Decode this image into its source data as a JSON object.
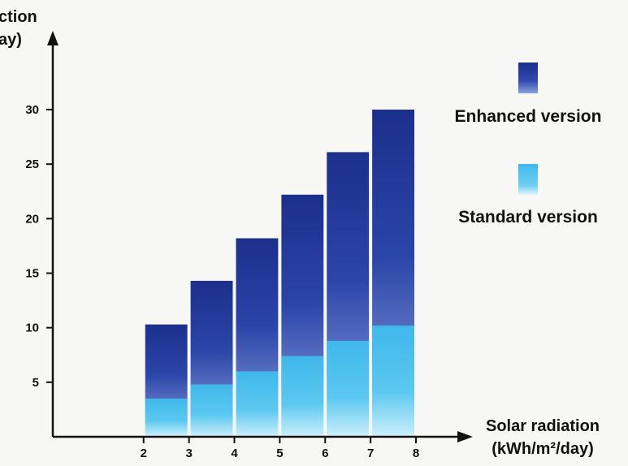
{
  "chart_data": {
    "type": "bar",
    "x_ticks": [
      "2",
      "3",
      "4",
      "5",
      "6",
      "7",
      "8"
    ],
    "x_values": [
      2.5,
      3.5,
      4.5,
      5.5,
      6.5,
      7.5
    ],
    "series": [
      {
        "name": "Enhanced version",
        "values": [
          10.3,
          14.3,
          18.2,
          22.2,
          26.1,
          30.0
        ]
      },
      {
        "name": "Standard version",
        "values": [
          3.5,
          4.8,
          6.0,
          7.4,
          8.8,
          10.2
        ]
      }
    ],
    "y_ticks": [
      "5",
      "10",
      "15",
      "20",
      "25",
      "30"
    ],
    "ylim": [
      0,
      33
    ],
    "xlim": [
      0,
      8.4
    ],
    "ylabel_lines": [
      "ction",
      "ay)"
    ],
    "xlabel_lines": [
      "Solar radiation",
      "(kWh/m²/day)"
    ],
    "legend_position": "right",
    "grid": false,
    "colors": {
      "enhanced_dark": "#1a2f8f",
      "enhanced_mid": "#3a55b5",
      "standard_light": "#4fc3ee",
      "standard_pale": "#a9e3f8",
      "axis": "#111111"
    }
  }
}
